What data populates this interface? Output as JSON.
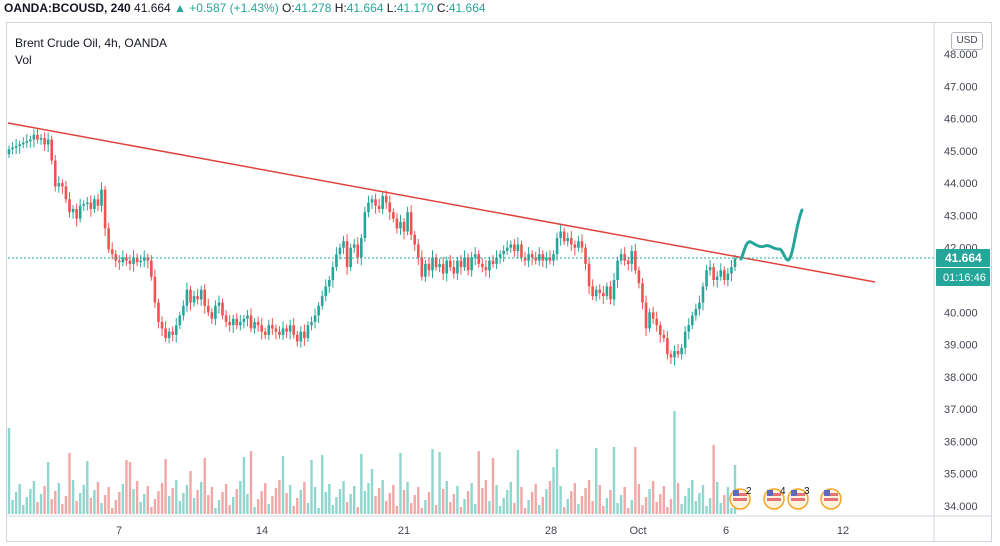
{
  "header": {
    "symbol": "OANDA:BCOUSD, 240",
    "last": "41.664",
    "change": "▲ +0.587 (+1.43%)",
    "o_label": "O:",
    "o_value": "41.278",
    "h_label": "H:",
    "h_value": "41.664",
    "l_label": "L:",
    "l_value": "41.170",
    "c_label": "C:",
    "c_value": "41.664"
  },
  "legend": {
    "title": "Brent Crude Oil, 4h, OANDA",
    "volume": "Vol"
  },
  "currency_button": "USD",
  "price_label": "41.664",
  "countdown_label": "01:16:46",
  "events": [
    {
      "icon": "us-flag-icon",
      "count": "2"
    },
    {
      "icon": "us-flag-icon",
      "count": "4"
    },
    {
      "icon": "us-flag-icon",
      "count": "3"
    },
    {
      "icon": "us-flag-icon",
      "count": ""
    }
  ],
  "colors": {
    "up": "#26a69a",
    "down": "#ef5350",
    "up_vol": "#8fd6cf",
    "down_vol": "#f1a7a5",
    "trendline": "#e0433c",
    "projection": "#26a69a",
    "price_line": "#26a69a"
  },
  "chart_data": {
    "type": "candlestick",
    "title": "Brent Crude Oil, 4h, OANDA",
    "xlabel": "",
    "ylabel": "",
    "x_ticks": [
      "7",
      "14",
      "21",
      "28",
      "Oct",
      "6",
      "12"
    ],
    "y_ticks": [
      "34.000",
      "35.000",
      "36.000",
      "37.000",
      "38.000",
      "39.000",
      "40.000",
      "41.000",
      "42.000",
      "43.000",
      "44.000",
      "45.000",
      "46.000",
      "47.000",
      "48.000"
    ],
    "ylim": [
      33.85,
      48.3
    ],
    "last_price": 41.664,
    "candles_close": [
      45.05,
      45.1,
      45.15,
      45.2,
      45.25,
      45.3,
      45.35,
      45.5,
      45.35,
      45.4,
      45.2,
      45.35,
      44.7,
      43.9,
      44.0,
      43.9,
      43.5,
      43.1,
      43.2,
      42.9,
      43.3,
      43.35,
      43.4,
      43.2,
      43.5,
      43.3,
      43.8,
      42.6,
      41.95,
      41.8,
      41.6,
      41.55,
      41.7,
      41.6,
      41.5,
      41.7,
      41.55,
      41.6,
      41.7,
      41.6,
      41.1,
      40.3,
      39.7,
      39.5,
      39.2,
      39.4,
      39.3,
      39.6,
      39.9,
      40.2,
      40.7,
      40.3,
      40.5,
      40.4,
      40.7,
      40.2,
      40.0,
      39.8,
      40.2,
      40.3,
      39.9,
      39.7,
      39.6,
      39.8,
      39.6,
      39.7,
      39.8,
      39.9,
      39.5,
      39.7,
      39.6,
      39.4,
      39.3,
      39.6,
      39.5,
      39.4,
      39.3,
      39.5,
      39.4,
      39.6,
      39.3,
      39.1,
      39.4,
      39.2,
      39.6,
      39.7,
      39.9,
      40.2,
      40.5,
      40.8,
      41.0,
      41.4,
      41.8,
      42.0,
      42.2,
      41.4,
      42.0,
      42.1,
      41.7,
      42.3,
      43.1,
      43.4,
      43.5,
      43.3,
      43.2,
      43.6,
      43.4,
      43.1,
      42.9,
      42.6,
      42.8,
      42.5,
      43.1,
      42.4,
      42.1,
      41.7,
      41.1,
      41.5,
      41.3,
      41.7,
      41.4,
      41.5,
      41.2,
      41.6,
      41.4,
      41.2,
      41.6,
      41.4,
      41.7,
      41.3,
      41.7,
      41.8,
      41.5,
      41.4,
      41.3,
      41.6,
      41.5,
      41.7,
      41.8,
      41.9,
      42.0,
      42.1,
      41.9,
      42.1,
      41.7,
      41.6,
      41.8,
      41.7,
      41.6,
      41.8,
      41.6,
      41.7,
      41.6,
      41.8,
      42.3,
      42.5,
      42.2,
      42.3,
      42.1,
      42.0,
      42.2,
      42.0,
      41.5,
      40.8,
      40.5,
      40.7,
      40.6,
      40.5,
      40.8,
      40.4,
      41.0,
      41.6,
      41.8,
      41.6,
      41.5,
      41.9,
      41.3,
      40.9,
      40.3,
      39.5,
      40.0,
      39.8,
      39.6,
      39.3,
      39.2,
      38.7,
      38.6,
      38.8,
      38.7,
      38.9,
      39.4,
      39.6,
      39.9,
      40.1,
      40.3,
      40.8,
      41.3,
      41.4,
      41.0,
      41.1,
      41.3,
      41.0,
      41.2,
      41.4,
      41.664
    ]
  }
}
